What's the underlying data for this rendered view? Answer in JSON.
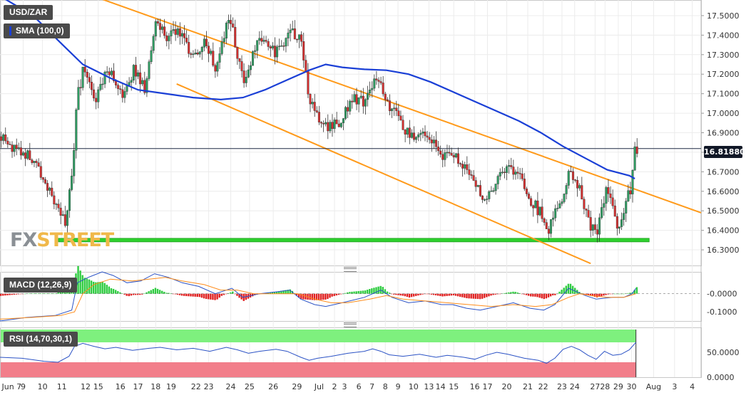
{
  "labels": {
    "symbol": "USD/ZAR",
    "sma": "SMA (100,0)",
    "macd": "MACD (12,26,9)",
    "rsi": "RSI (14,70,30,1)",
    "current_price": "16.81880",
    "logo_fx": "FX",
    "logo_street": "STREET"
  },
  "colors": {
    "candle_up": "#2e9d62",
    "candle_down": "#d62f2f",
    "sma": "#1a3fd6",
    "channel": "#ff9a1a",
    "support": "#2ed12e",
    "macd_line": "#2b52c5",
    "signal_line": "#ff8c1a",
    "hist_pos": "#2ecc40",
    "hist_neg": "#e02020",
    "rsi_line": "#2b52c5",
    "rsi_over": "#7ef07e",
    "rsi_under": "#f27e8a",
    "price_tag": "#111827"
  },
  "chart_data": [
    {
      "type": "candlestick",
      "name": "price",
      "title": "USD/ZAR",
      "y_ticks": [
        "17.5000",
        "17.4000",
        "17.3000",
        "17.2000",
        "17.1000",
        "17.0000",
        "16.9000",
        "16.8000",
        "16.7000",
        "16.6000",
        "16.5000",
        "16.4000",
        "16.3000"
      ],
      "y_tick_values": [
        17.5,
        17.4,
        17.3,
        17.2,
        17.1,
        17.0,
        16.9,
        16.8,
        16.7,
        16.6,
        16.5,
        16.4,
        16.3
      ],
      "ylim": [
        16.22,
        17.58
      ],
      "x_ticks": [
        "Jun 7",
        "9",
        "10",
        "11",
        "12",
        "15",
        "16",
        "17",
        "18",
        "19",
        "22",
        "23",
        "24",
        "25",
        "26",
        "29",
        "Jul",
        "2",
        "3",
        "6",
        "7",
        "8",
        "9",
        "10",
        "13",
        "14",
        "15",
        "16",
        "17",
        "20",
        "21",
        "22",
        "23",
        "24",
        "27",
        "28",
        "29",
        "30",
        "Aug",
        "3",
        "4"
      ],
      "x_tick_slots": [
        2,
        42,
        77,
        112,
        155,
        178,
        218,
        250,
        282,
        310,
        355,
        378,
        418,
        452,
        495,
        538,
        578,
        606,
        624,
        650,
        674,
        698,
        721,
        749,
        777,
        798,
        822,
        860,
        883,
        918,
        956,
        984,
        1018,
        1041,
        1078,
        1096,
        1120,
        1144,
        1184,
        1222,
        1254
      ],
      "x_slot_range": [
        0,
        1270
      ],
      "current_price": 16.8188,
      "support_level": 16.35,
      "channel_upper": [
        [
          40,
          17.73
        ],
        [
          1270,
          16.49
        ]
      ],
      "channel_lower": [
        [
          320,
          17.15
        ],
        [
          1070,
          16.23
        ]
      ],
      "sma_100": [
        [
          0,
          17.6
        ],
        [
          60,
          17.5
        ],
        [
          110,
          17.36
        ],
        [
          150,
          17.25
        ],
        [
          200,
          17.18
        ],
        [
          250,
          17.12
        ],
        [
          300,
          17.1
        ],
        [
          350,
          17.08
        ],
        [
          400,
          17.07
        ],
        [
          440,
          17.08
        ],
        [
          480,
          17.12
        ],
        [
          520,
          17.17
        ],
        [
          560,
          17.22
        ],
        [
          590,
          17.25
        ],
        [
          620,
          17.235
        ],
        [
          660,
          17.225
        ],
        [
          700,
          17.22
        ],
        [
          740,
          17.2
        ],
        [
          780,
          17.16
        ],
        [
          820,
          17.11
        ],
        [
          860,
          17.06
        ],
        [
          900,
          17.01
        ],
        [
          940,
          16.96
        ],
        [
          980,
          16.9
        ],
        [
          1020,
          16.83
        ],
        [
          1060,
          16.77
        ],
        [
          1100,
          16.71
        ],
        [
          1140,
          16.68
        ],
        [
          1150,
          16.665
        ]
      ],
      "close_anchors": [
        [
          0,
          16.88
        ],
        [
          30,
          16.81
        ],
        [
          60,
          16.77
        ],
        [
          85,
          16.62
        ],
        [
          105,
          16.5
        ],
        [
          115,
          16.43
        ],
        [
          128,
          16.66
        ],
        [
          138,
          17.08
        ],
        [
          150,
          17.24
        ],
        [
          170,
          17.05
        ],
        [
          190,
          17.22
        ],
        [
          205,
          17.18
        ],
        [
          220,
          17.08
        ],
        [
          240,
          17.22
        ],
        [
          260,
          17.12
        ],
        [
          280,
          17.48
        ],
        [
          300,
          17.38
        ],
        [
          320,
          17.42
        ],
        [
          345,
          17.3
        ],
        [
          370,
          17.36
        ],
        [
          390,
          17.22
        ],
        [
          410,
          17.48
        ],
        [
          420,
          17.42
        ],
        [
          440,
          17.14
        ],
        [
          460,
          17.35
        ],
        [
          480,
          17.38
        ],
        [
          495,
          17.3
        ],
        [
          520,
          17.4
        ],
        [
          540,
          17.41
        ],
        [
          560,
          17.05
        ],
        [
          575,
          16.98
        ],
        [
          590,
          16.92
        ],
        [
          610,
          16.95
        ],
        [
          640,
          17.08
        ],
        [
          660,
          17.05
        ],
        [
          680,
          17.18
        ],
        [
          690,
          17.13
        ],
        [
          700,
          17.05
        ],
        [
          720,
          16.98
        ],
        [
          740,
          16.88
        ],
        [
          760,
          16.9
        ],
        [
          780,
          16.85
        ],
        [
          800,
          16.77
        ],
        [
          820,
          16.8
        ],
        [
          840,
          16.71
        ],
        [
          860,
          16.65
        ],
        [
          875,
          16.56
        ],
        [
          890,
          16.62
        ],
        [
          900,
          16.68
        ],
        [
          915,
          16.72
        ],
        [
          940,
          16.68
        ],
        [
          960,
          16.55
        ],
        [
          980,
          16.48
        ],
        [
          990,
          16.4
        ],
        [
          1005,
          16.5
        ],
        [
          1020,
          16.6
        ],
        [
          1030,
          16.72
        ],
        [
          1040,
          16.66
        ],
        [
          1055,
          16.55
        ],
        [
          1065,
          16.44
        ],
        [
          1080,
          16.38
        ],
        [
          1095,
          16.6
        ],
        [
          1110,
          16.5
        ],
        [
          1120,
          16.4
        ],
        [
          1130,
          16.52
        ],
        [
          1140,
          16.61
        ],
        [
          1148,
          16.8
        ],
        [
          1152,
          16.82
        ]
      ]
    },
    {
      "type": "macd",
      "title": "MACD (12,26,9)",
      "y_ticks": [
        "-0.0000",
        "-0.1000"
      ],
      "y_tick_values": [
        0.0,
        -0.1
      ],
      "ylim": [
        -0.15,
        0.12
      ],
      "macd": [
        [
          0,
          -0.15
        ],
        [
          50,
          -0.13
        ],
        [
          100,
          -0.12
        ],
        [
          130,
          -0.09
        ],
        [
          140,
          0.06
        ],
        [
          160,
          0.09
        ],
        [
          185,
          0.12
        ],
        [
          205,
          0.1
        ],
        [
          230,
          0.06
        ],
        [
          255,
          0.07
        ],
        [
          280,
          0.11
        ],
        [
          305,
          0.09
        ],
        [
          330,
          0.06
        ],
        [
          360,
          0.04
        ],
        [
          390,
          0.0
        ],
        [
          420,
          0.03
        ],
        [
          440,
          -0.02
        ],
        [
          470,
          0.0
        ],
        [
          500,
          0.01
        ],
        [
          525,
          0.02
        ],
        [
          545,
          -0.03
        ],
        [
          570,
          -0.06
        ],
        [
          590,
          -0.07
        ],
        [
          620,
          -0.05
        ],
        [
          660,
          -0.02
        ],
        [
          690,
          0.02
        ],
        [
          710,
          -0.02
        ],
        [
          740,
          -0.05
        ],
        [
          770,
          -0.04
        ],
        [
          800,
          -0.06
        ],
        [
          820,
          -0.06
        ],
        [
          845,
          -0.08
        ],
        [
          870,
          -0.09
        ],
        [
          900,
          -0.07
        ],
        [
          930,
          -0.05
        ],
        [
          960,
          -0.08
        ],
        [
          985,
          -0.09
        ],
        [
          1005,
          -0.06
        ],
        [
          1030,
          0.03
        ],
        [
          1045,
          0.01
        ],
        [
          1060,
          -0.01
        ],
        [
          1080,
          -0.03
        ],
        [
          1110,
          -0.02
        ],
        [
          1130,
          -0.02
        ],
        [
          1145,
          0.0
        ],
        [
          1152,
          0.03
        ]
      ],
      "signal": [
        [
          0,
          -0.14
        ],
        [
          60,
          -0.13
        ],
        [
          110,
          -0.12
        ],
        [
          135,
          -0.1
        ],
        [
          150,
          0.0
        ],
        [
          170,
          0.05
        ],
        [
          200,
          0.08
        ],
        [
          240,
          0.07
        ],
        [
          270,
          0.08
        ],
        [
          300,
          0.09
        ],
        [
          330,
          0.07
        ],
        [
          370,
          0.05
        ],
        [
          400,
          0.02
        ],
        [
          430,
          0.02
        ],
        [
          460,
          0.0
        ],
        [
          500,
          0.0
        ],
        [
          540,
          0.0
        ],
        [
          570,
          -0.03
        ],
        [
          600,
          -0.05
        ],
        [
          630,
          -0.05
        ],
        [
          670,
          -0.03
        ],
        [
          700,
          -0.01
        ],
        [
          730,
          -0.03
        ],
        [
          770,
          -0.04
        ],
        [
          810,
          -0.05
        ],
        [
          850,
          -0.06
        ],
        [
          890,
          -0.07
        ],
        [
          930,
          -0.06
        ],
        [
          970,
          -0.07
        ],
        [
          1000,
          -0.06
        ],
        [
          1030,
          -0.02
        ],
        [
          1050,
          0.0
        ],
        [
          1070,
          -0.01
        ],
        [
          1100,
          -0.02
        ],
        [
          1130,
          -0.02
        ],
        [
          1152,
          0.0
        ]
      ]
    },
    {
      "type": "line",
      "title": "RSI (14,70,30,1)",
      "y_ticks": [
        "50.0000",
        "0.0000"
      ],
      "y_tick_values": [
        50,
        0
      ],
      "ylim": [
        0,
        100
      ],
      "overbought": 70,
      "oversold": 30,
      "rsi": [
        [
          0,
          40
        ],
        [
          40,
          38
        ],
        [
          80,
          32
        ],
        [
          105,
          30
        ],
        [
          125,
          42
        ],
        [
          135,
          62
        ],
        [
          150,
          68
        ],
        [
          170,
          62
        ],
        [
          190,
          57
        ],
        [
          210,
          60
        ],
        [
          240,
          54
        ],
        [
          270,
          58
        ],
        [
          290,
          60
        ],
        [
          320,
          55
        ],
        [
          350,
          58
        ],
        [
          380,
          52
        ],
        [
          410,
          60
        ],
        [
          430,
          55
        ],
        [
          450,
          48
        ],
        [
          470,
          52
        ],
        [
          500,
          56
        ],
        [
          520,
          52
        ],
        [
          545,
          40
        ],
        [
          560,
          34
        ],
        [
          575,
          38
        ],
        [
          600,
          42
        ],
        [
          630,
          48
        ],
        [
          660,
          52
        ],
        [
          675,
          57
        ],
        [
          690,
          52
        ],
        [
          705,
          45
        ],
        [
          730,
          42
        ],
        [
          760,
          46
        ],
        [
          790,
          40
        ],
        [
          810,
          44
        ],
        [
          840,
          40
        ],
        [
          860,
          36
        ],
        [
          880,
          44
        ],
        [
          900,
          50
        ],
        [
          920,
          46
        ],
        [
          950,
          38
        ],
        [
          975,
          34
        ],
        [
          990,
          28
        ],
        [
          1005,
          38
        ],
        [
          1020,
          56
        ],
        [
          1035,
          62
        ],
        [
          1050,
          55
        ],
        [
          1065,
          44
        ],
        [
          1080,
          36
        ],
        [
          1095,
          52
        ],
        [
          1110,
          44
        ],
        [
          1125,
          46
        ],
        [
          1140,
          55
        ],
        [
          1152,
          70
        ]
      ]
    }
  ]
}
